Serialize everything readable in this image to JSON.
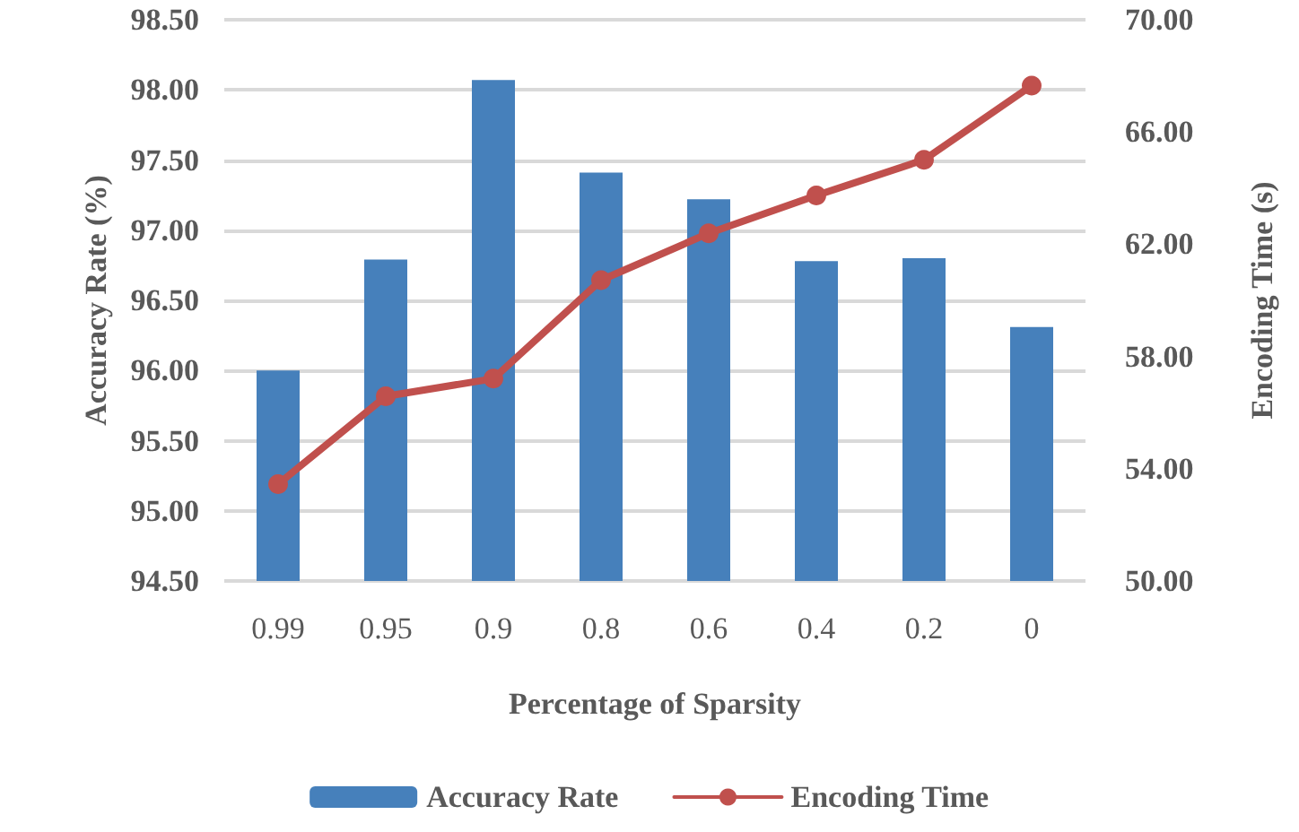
{
  "chart_data": {
    "type": "bar",
    "xlabel": "Percentage of Sparsity",
    "ylabel": "Accuracy Rate (%)",
    "y2label": "Encoding Time (s)",
    "categories": [
      "0.99",
      "0.95",
      "0.9",
      "0.8",
      "0.6",
      "0.4",
      "0.2",
      "0"
    ],
    "series": [
      {
        "name": "Accuracy Rate",
        "color": "#4680bb",
        "values": [
          96.0,
          96.79,
          98.07,
          97.41,
          97.22,
          96.78,
          96.8,
          96.31
        ]
      },
      {
        "name": "Encoding Time",
        "type": "line",
        "axis": "y2",
        "color": "#c0504d",
        "marker": "circle",
        "values": [
          53.45,
          56.58,
          57.21,
          60.72,
          62.39,
          63.74,
          65.01,
          67.65
        ]
      }
    ],
    "ylim": [
      94.5,
      98.5
    ],
    "yticks": [
      {
        "value": 94.5,
        "label": "94.50"
      },
      {
        "value": 95,
        "label": "95.00"
      },
      {
        "value": 95.5,
        "label": "95.50"
      },
      {
        "value": 96,
        "label": "96.00"
      },
      {
        "value": 96.5,
        "label": "96.50"
      },
      {
        "value": 97,
        "label": "97.00"
      },
      {
        "value": 97.5,
        "label": "97.50"
      },
      {
        "value": 98,
        "label": "98.00"
      },
      {
        "value": 98.5,
        "label": "98.50"
      }
    ],
    "y2lim": [
      50,
      70
    ],
    "y2ticks": [
      {
        "value": 50,
        "label": "50.00"
      },
      {
        "value": 54,
        "label": "54.00"
      },
      {
        "value": 58,
        "label": "58.00"
      },
      {
        "value": 62,
        "label": "62.00"
      },
      {
        "value": 66,
        "label": "66.00"
      },
      {
        "value": 70,
        "label": "70.00"
      }
    ],
    "grid": "y",
    "legend": "bottom"
  }
}
